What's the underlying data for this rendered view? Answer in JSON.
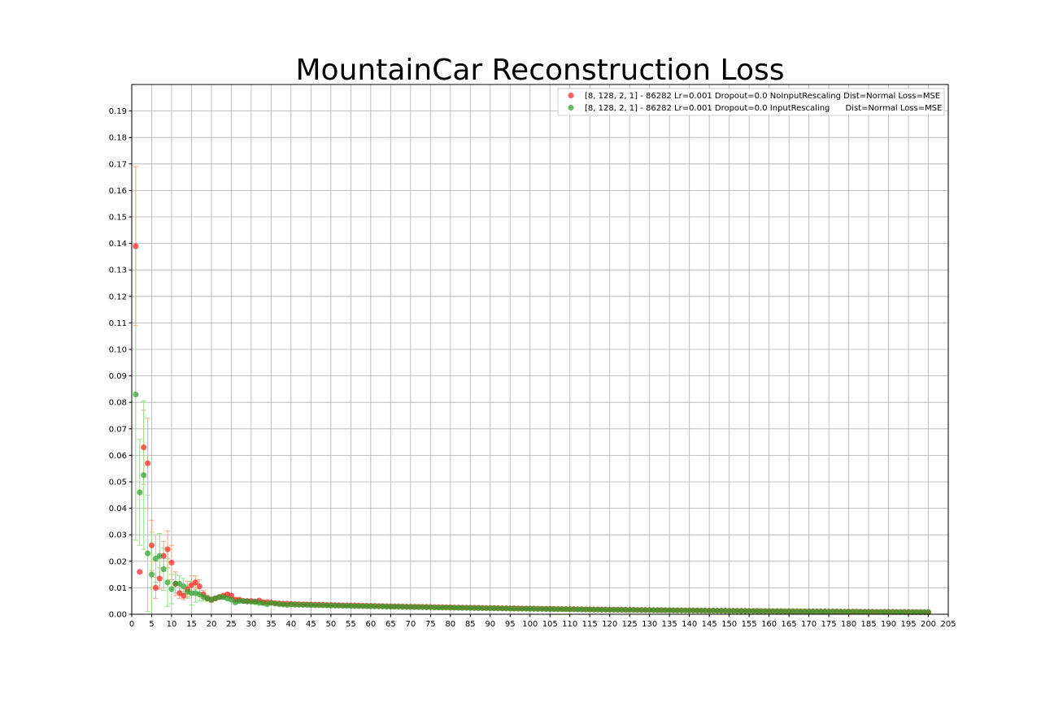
{
  "chart_data": {
    "type": "scatter",
    "title": "MountainCar Reconstruction Loss",
    "xlabel": "",
    "ylabel": "",
    "xlim": [
      0,
      205
    ],
    "ylim": [
      0,
      0.2
    ],
    "grid": true,
    "legend_position": "top-right",
    "x_ticks": [
      "0",
      "5",
      "10",
      "15",
      "20",
      "25",
      "30",
      "35",
      "40",
      "45",
      "50",
      "55",
      "60",
      "65",
      "70",
      "75",
      "80",
      "85",
      "90",
      "95",
      "100",
      "105",
      "110",
      "115",
      "120",
      "125",
      "130",
      "135",
      "140",
      "145",
      "150",
      "155",
      "160",
      "165",
      "170",
      "175",
      "180",
      "185",
      "190",
      "195",
      "200",
      "205"
    ],
    "y_ticks": [
      "0.00",
      "0.01",
      "0.02",
      "0.03",
      "0.04",
      "0.05",
      "0.06",
      "0.07",
      "0.08",
      "0.09",
      "0.10",
      "0.11",
      "0.12",
      "0.13",
      "0.14",
      "0.15",
      "0.16",
      "0.17",
      "0.18",
      "0.19"
    ],
    "series": [
      {
        "name": "[8, 128, 2, 1] - 86282 Lr=0.001 Dropout=0.0 NoInputRescaling Dist=Normal Loss=MSE",
        "color": "#ff2020",
        "error_color": "#f4a582",
        "head_x": [
          1,
          2,
          3,
          4,
          5,
          6,
          7,
          8,
          9,
          10,
          11,
          12,
          13,
          14,
          15,
          16,
          17,
          18,
          19,
          20,
          21,
          22,
          23,
          24,
          25,
          26,
          27,
          28,
          29,
          30,
          31,
          32,
          33,
          34,
          35,
          36,
          37,
          38,
          39,
          40
        ],
        "head_y": [
          0.139,
          0.016,
          0.063,
          0.057,
          0.026,
          0.01,
          0.0135,
          0.022,
          0.0245,
          0.0195,
          0.0115,
          0.008,
          0.007,
          0.0095,
          0.011,
          0.012,
          0.0105,
          0.0075,
          0.006,
          0.0055,
          0.006,
          0.0065,
          0.007,
          0.0075,
          0.007,
          0.0055,
          0.0055,
          0.005,
          0.005,
          0.005,
          0.0048,
          0.0052,
          0.0045,
          0.0046,
          0.0044,
          0.0042,
          0.0041,
          0.004,
          0.004,
          0.0039
        ],
        "head_err": [
          0.03,
          0.0,
          0.014,
          0.017,
          0.0095,
          0.004,
          0.004,
          0.0055,
          0.007,
          0.0065,
          0.0045,
          0.002,
          0.0015,
          0.003,
          0.0035,
          0.0025,
          0.0025,
          0.0015,
          0.001,
          0.0008,
          0.0006,
          0.0006,
          0.0006,
          0.0006,
          0.0006,
          0.0005,
          0.0005,
          0.0004,
          0.0004,
          0.0004,
          0.0003,
          0.0003,
          0.0003,
          0.0003,
          0.0003,
          0.0002,
          0.0002,
          0.0002,
          0.0002,
          0.0002
        ],
        "tail_start": 41,
        "tail_end": 200,
        "tail_y_start": 0.0038,
        "tail_y_end": 0.0008
      },
      {
        "name": "[8, 128, 2, 1] - 86282 Lr=0.001 Dropout=0.0 InputRescaling      Dist=Normal Loss=MSE",
        "color": "#2ca02c",
        "error_color": "#98df8a",
        "head_x": [
          1,
          2,
          3,
          4,
          5,
          6,
          7,
          8,
          9,
          10,
          11,
          12,
          13,
          14,
          15,
          16,
          17,
          18,
          19,
          20,
          21,
          22,
          23,
          24,
          25,
          26,
          27,
          28,
          29,
          30,
          31,
          32,
          33,
          34,
          35,
          36,
          37,
          38,
          39,
          40
        ],
        "head_y": [
          0.083,
          0.046,
          0.0525,
          0.023,
          0.015,
          0.021,
          0.022,
          0.017,
          0.012,
          0.0095,
          0.0115,
          0.0115,
          0.0105,
          0.0085,
          0.008,
          0.008,
          0.0075,
          0.0065,
          0.006,
          0.0055,
          0.006,
          0.0065,
          0.0065,
          0.006,
          0.0055,
          0.0045,
          0.005,
          0.005,
          0.0048,
          0.0047,
          0.0046,
          0.0043,
          0.0042,
          0.0038,
          0.0043,
          0.004,
          0.0038,
          0.0037,
          0.0035,
          0.0037
        ],
        "head_err": [
          0.055,
          0.02,
          0.028,
          0.022,
          0.016,
          0.009,
          0.0085,
          0.008,
          0.009,
          0.0055,
          0.0035,
          0.003,
          0.003,
          0.0025,
          0.0045,
          0.0035,
          0.0025,
          0.0015,
          0.0012,
          0.001,
          0.0008,
          0.0008,
          0.0008,
          0.0007,
          0.0006,
          0.0005,
          0.0005,
          0.0005,
          0.0004,
          0.0004,
          0.0003,
          0.0003,
          0.0003,
          0.0003,
          0.0003,
          0.0002,
          0.0002,
          0.0002,
          0.0002,
          0.0002
        ],
        "tail_start": 41,
        "tail_end": 200,
        "tail_y_start": 0.0036,
        "tail_y_end": 0.0008
      }
    ]
  }
}
